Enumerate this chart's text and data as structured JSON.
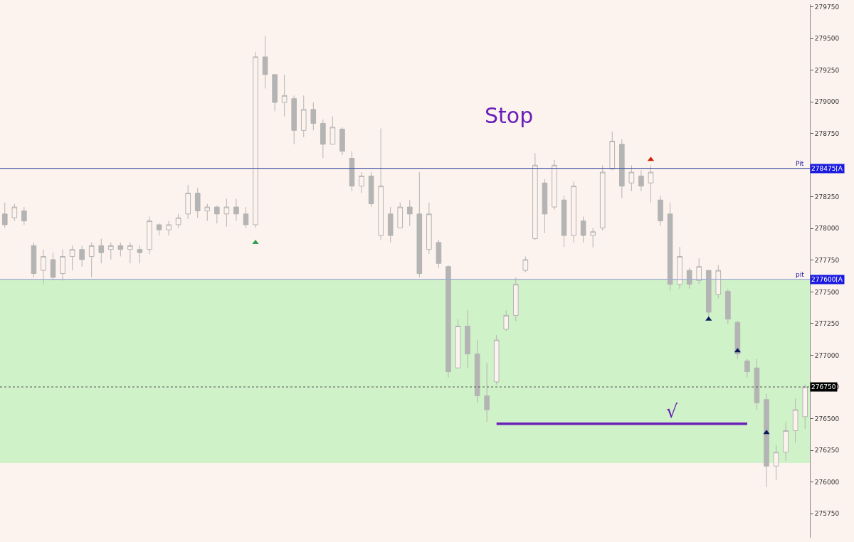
{
  "chart_data": {
    "type": "candlestick",
    "categories": [
      null,
      null,
      null,
      null,
      null,
      null,
      null,
      null,
      null,
      null,
      null,
      null,
      null,
      null,
      null,
      null,
      null,
      null,
      null,
      null,
      null,
      null,
      null,
      null,
      null,
      null,
      null,
      null,
      null,
      null,
      null,
      null,
      null,
      null,
      null,
      null,
      null,
      null,
      null,
      null,
      null,
      null,
      null,
      null,
      null,
      null,
      null,
      null,
      null,
      null,
      null,
      null,
      null,
      null,
      null,
      null,
      null,
      null,
      null,
      null,
      null,
      null,
      null,
      null,
      null,
      null,
      null,
      null,
      null,
      null,
      null,
      null,
      null,
      null,
      null,
      null,
      null,
      null,
      null,
      null,
      null,
      null,
      null,
      null
    ],
    "color": "#b4b4b4",
    "ohlc": [
      [
        278115,
        278205,
        278005,
        278030
      ],
      [
        278085,
        278195,
        278060,
        278170
      ],
      [
        278140,
        278170,
        278030,
        278060
      ],
      [
        277865,
        277890,
        277615,
        277645
      ],
      [
        277670,
        277835,
        277560,
        277780
      ],
      [
        277755,
        277810,
        277590,
        277615
      ],
      [
        277645,
        277835,
        277590,
        277780
      ],
      [
        277780,
        277865,
        277670,
        277835
      ],
      [
        277835,
        277865,
        277700,
        277755
      ],
      [
        277780,
        277890,
        277615,
        277865
      ],
      [
        277865,
        277920,
        277725,
        277810
      ],
      [
        277835,
        277890,
        277755,
        277865
      ],
      [
        277865,
        277890,
        277780,
        277835
      ],
      [
        277835,
        277890,
        277725,
        277865
      ],
      [
        277835,
        277865,
        277725,
        277810
      ],
      [
        277835,
        278095,
        277800,
        278060
      ],
      [
        278030,
        278040,
        277945,
        277990
      ],
      [
        277990,
        278060,
        277945,
        278030
      ],
      [
        278030,
        278115,
        278005,
        278085
      ],
      [
        278115,
        278345,
        278075,
        278280
      ],
      [
        278280,
        278320,
        278085,
        278140
      ],
      [
        278140,
        278195,
        278060,
        278170
      ],
      [
        278170,
        278180,
        278040,
        278115
      ],
      [
        278115,
        278235,
        278015,
        278170
      ],
      [
        278170,
        278235,
        278060,
        278115
      ],
      [
        278115,
        278170,
        278005,
        278030
      ],
      [
        278030,
        279395,
        278005,
        279355
      ],
      [
        279355,
        279520,
        279105,
        279215
      ],
      [
        279215,
        279215,
        278925,
        278995
      ],
      [
        278995,
        279215,
        278885,
        279050
      ],
      [
        279025,
        279050,
        278665,
        278775
      ],
      [
        278775,
        279050,
        278720,
        278940
      ],
      [
        278940,
        278995,
        278775,
        278830
      ],
      [
        278830,
        278860,
        278555,
        278665
      ],
      [
        278665,
        278885,
        278665,
        278800
      ],
      [
        278785,
        278800,
        278580,
        278610
      ],
      [
        278555,
        278610,
        278295,
        278335
      ],
      [
        278335,
        278445,
        278280,
        278415
      ],
      [
        278415,
        278445,
        278170,
        278195
      ],
      [
        277945,
        278790,
        277910,
        278335
      ],
      [
        278115,
        278170,
        277890,
        277945
      ],
      [
        278005,
        278205,
        278005,
        278170
      ],
      [
        278170,
        278225,
        278020,
        278115
      ],
      [
        278115,
        278445,
        277615,
        277645
      ],
      [
        277835,
        278205,
        277800,
        278115
      ],
      [
        277890,
        277910,
        277690,
        277725
      ],
      [
        277700,
        277710,
        276825,
        276870
      ],
      [
        276900,
        277285,
        276900,
        277230
      ],
      [
        277230,
        277355,
        276900,
        277010
      ],
      [
        277010,
        277120,
        276625,
        276680
      ],
      [
        276680,
        276940,
        276475,
        276570
      ],
      [
        276790,
        277160,
        276770,
        277120
      ],
      [
        277205,
        277355,
        277190,
        277315
      ],
      [
        277315,
        277615,
        277270,
        277560
      ],
      [
        277670,
        277780,
        277655,
        277755
      ],
      [
        277920,
        278595,
        277910,
        278500
      ],
      [
        278360,
        278390,
        277965,
        278115
      ],
      [
        278170,
        278540,
        278150,
        278500
      ],
      [
        278225,
        278260,
        277855,
        277945
      ],
      [
        277945,
        278370,
        277890,
        278335
      ],
      [
        278060,
        278095,
        277890,
        277945
      ],
      [
        277945,
        278005,
        277850,
        277975
      ],
      [
        278005,
        278500,
        277985,
        278445
      ],
      [
        278470,
        278765,
        278460,
        278690
      ],
      [
        278665,
        278705,
        278240,
        278335
      ],
      [
        278360,
        278500,
        278295,
        278445
      ],
      [
        278415,
        278460,
        278295,
        278335
      ],
      [
        278360,
        278500,
        278205,
        278445
      ],
      [
        278225,
        278260,
        278020,
        278060
      ],
      [
        278115,
        278205,
        277505,
        277560
      ],
      [
        277560,
        277855,
        277525,
        277780
      ],
      [
        277670,
        277690,
        277525,
        277560
      ],
      [
        277590,
        277765,
        277560,
        277700
      ],
      [
        277670,
        277670,
        277300,
        277340
      ],
      [
        277480,
        277710,
        277450,
        277670
      ],
      [
        277505,
        277525,
        277245,
        277285
      ],
      [
        277260,
        277270,
        276970,
        277010
      ],
      [
        276955,
        276970,
        276825,
        276870
      ],
      [
        276900,
        276970,
        276570,
        276625
      ],
      [
        276650,
        276695,
        275960,
        276125
      ],
      [
        276125,
        276290,
        276015,
        276235
      ],
      [
        276235,
        276475,
        276165,
        276405
      ],
      [
        276405,
        276660,
        276310,
        276570
      ],
      [
        276515,
        276770,
        276420,
        276750
      ]
    ],
    "series": [
      {
        "type": "scatter",
        "marker": "triangle",
        "color": "#2e9e4f",
        "values": [
          null,
          null,
          null,
          null,
          null,
          null,
          null,
          null,
          null,
          null,
          null,
          null,
          null,
          null,
          null,
          null,
          null,
          null,
          null,
          null,
          null,
          null,
          null,
          null,
          null,
          null,
          277890,
          null,
          null,
          null,
          null,
          null,
          null,
          null,
          null,
          null,
          null,
          null,
          null,
          null,
          null,
          null,
          null,
          null,
          null,
          null,
          null,
          null,
          null,
          null,
          null,
          null,
          null,
          null,
          null,
          null,
          null,
          null,
          null,
          null,
          null,
          null,
          null,
          null,
          null,
          null,
          null,
          null,
          null,
          null,
          null,
          null,
          null,
          null,
          null,
          null,
          null,
          null,
          null,
          null,
          null,
          null,
          null,
          null
        ]
      },
      {
        "type": "scatter",
        "marker": "triangle",
        "color": "#cc2200",
        "values": [
          null,
          null,
          null,
          null,
          null,
          null,
          null,
          null,
          null,
          null,
          null,
          null,
          null,
          null,
          null,
          null,
          null,
          null,
          null,
          null,
          null,
          null,
          null,
          null,
          null,
          null,
          null,
          null,
          null,
          null,
          null,
          null,
          null,
          null,
          null,
          null,
          null,
          null,
          null,
          null,
          null,
          null,
          null,
          null,
          null,
          null,
          null,
          null,
          null,
          null,
          null,
          null,
          null,
          null,
          null,
          null,
          null,
          null,
          null,
          null,
          null,
          null,
          null,
          null,
          null,
          null,
          null,
          278545,
          null,
          null,
          null,
          null,
          null,
          null,
          null,
          null,
          null,
          null,
          null,
          null,
          null,
          null,
          null,
          null
        ]
      },
      {
        "type": "scatter",
        "marker": "triangle",
        "color": "#0a1a5c",
        "values": [
          null,
          null,
          null,
          null,
          null,
          null,
          null,
          null,
          null,
          null,
          null,
          null,
          null,
          null,
          null,
          null,
          null,
          null,
          null,
          null,
          null,
          null,
          null,
          null,
          null,
          null,
          null,
          null,
          null,
          null,
          null,
          null,
          null,
          null,
          null,
          null,
          null,
          null,
          null,
          null,
          null,
          null,
          null,
          null,
          null,
          null,
          null,
          null,
          null,
          null,
          null,
          null,
          null,
          null,
          null,
          null,
          null,
          null,
          null,
          null,
          null,
          null,
          null,
          null,
          null,
          null,
          null,
          null,
          null,
          null,
          null,
          null,
          null,
          277285,
          null,
          null,
          277035,
          null,
          null,
          276390,
          null,
          null,
          null,
          null
        ]
      },
      {
        "type": "line",
        "marker": "none",
        "color": "#6a1fb8",
        "values": [
          null,
          null,
          null,
          null,
          null,
          null,
          null,
          null,
          null,
          null,
          null,
          null,
          null,
          null,
          null,
          null,
          null,
          null,
          null,
          null,
          null,
          null,
          null,
          null,
          null,
          null,
          null,
          null,
          null,
          null,
          null,
          null,
          null,
          null,
          null,
          null,
          null,
          null,
          null,
          null,
          null,
          null,
          null,
          null,
          null,
          null,
          null,
          null,
          null,
          null,
          null,
          276460,
          276460,
          276460,
          276460,
          276460,
          276460,
          276460,
          276460,
          276460,
          276460,
          276460,
          276460,
          276460,
          276460,
          276460,
          276460,
          276460,
          276460,
          276460,
          276460,
          276460,
          276460,
          276460,
          276460,
          276460,
          276460,
          276460,
          null,
          null,
          null,
          null,
          null,
          null
        ]
      }
    ],
    "ylim": [
      275560,
      279770
    ],
    "yticks": [
      275750,
      276000,
      276250,
      276500,
      276750,
      277000,
      277250,
      277500,
      277750,
      278000,
      278250,
      {
        "value": 278500,
        "label": null
      },
      278750,
      279000,
      279250,
      279500,
      279750
    ],
    "ref_lines": [
      {
        "axis": "y",
        "value": 278475,
        "label": "Pit",
        "color": "#4a5aa8",
        "line_style": "solid"
      },
      {
        "axis": "y",
        "value": 277600,
        "label": "pit",
        "color": "#a0a8d8",
        "line_style": "solid"
      },
      {
        "axis": "y",
        "value": 276750,
        "color": "#555555",
        "line_style": "dotted"
      }
    ],
    "bands": [
      {
        "axis": "y",
        "from": 276150,
        "to": 277600,
        "color": "#d0f2c8"
      }
    ],
    "annotations": [
      "278475[A",
      "277600[A",
      "276750",
      "Stop",
      "√"
    ]
  }
}
